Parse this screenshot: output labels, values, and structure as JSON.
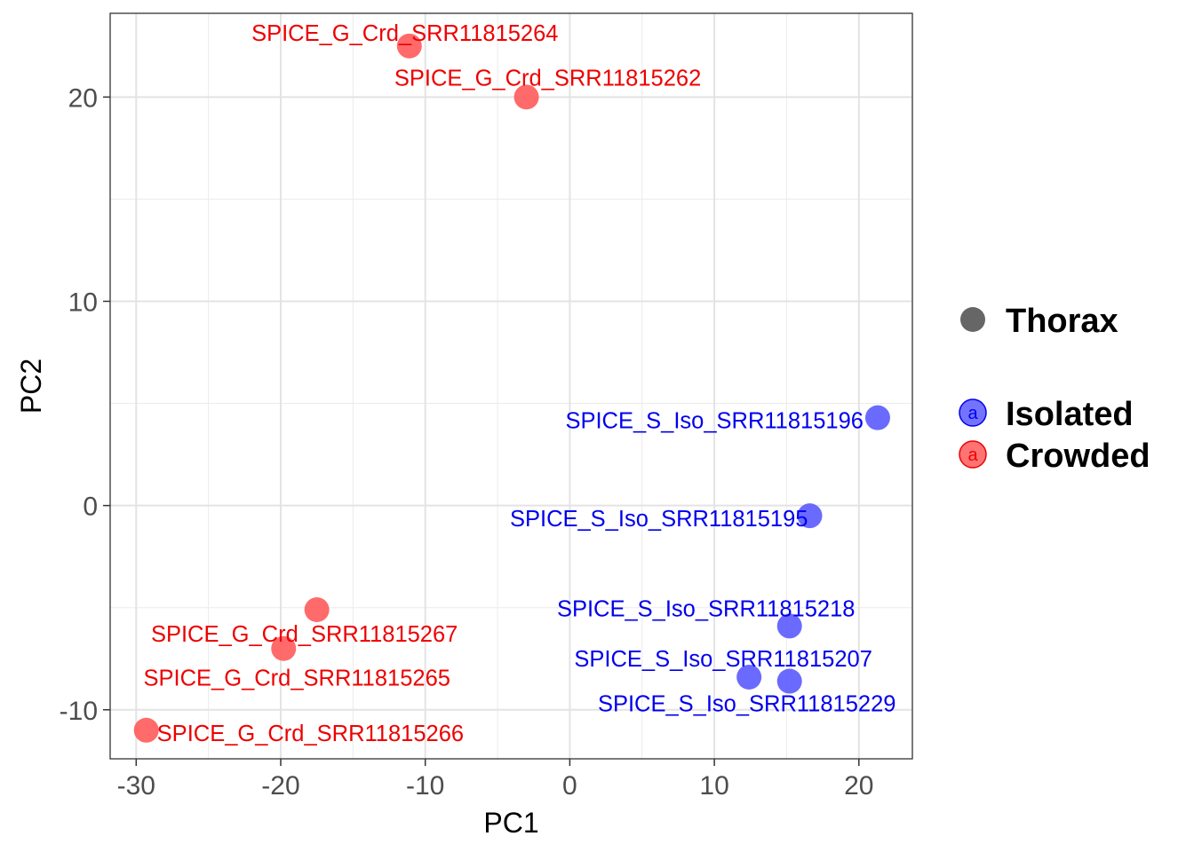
{
  "chart_data": {
    "type": "scatter",
    "title": "",
    "xlabel": "PC1",
    "ylabel": "PC2",
    "xlim": [
      -31.8,
      23.7
    ],
    "ylim": [
      -12.4,
      24.1
    ],
    "x_ticks": [
      -30,
      -20,
      -10,
      0,
      10,
      20
    ],
    "y_ticks": [
      -10,
      0,
      10,
      20
    ],
    "x_tick_labels": [
      "-30",
      "-20",
      "-10",
      "0",
      "10",
      "20"
    ],
    "y_tick_labels": [
      "-10",
      "0",
      "10",
      "20"
    ],
    "grid": true,
    "series": [
      {
        "name": "Isolated",
        "color": "#5a5aff",
        "label_color": "#0000ee",
        "points": [
          {
            "x": 21.3,
            "y": 4.3,
            "label": "SPICE_S_Iso_SRR11815196"
          },
          {
            "x": 16.6,
            "y": -0.5,
            "label": "SPICE_S_Iso_SRR11815195"
          },
          {
            "x": 15.2,
            "y": -5.9,
            "label": "SPICE_S_Iso_SRR11815218"
          },
          {
            "x": 12.4,
            "y": -8.4,
            "label": "SPICE_S_Iso_SRR11815207"
          },
          {
            "x": 15.2,
            "y": -8.6,
            "label": "SPICE_S_Iso_SRR11815229"
          }
        ]
      },
      {
        "name": "Crowded",
        "color": "#ff5a5a",
        "label_color": "#ee0000",
        "points": [
          {
            "x": -11.1,
            "y": 22.5,
            "label": "SPICE_G_Crd_SRR11815264"
          },
          {
            "x": -3.0,
            "y": 20.0,
            "label": "SPICE_G_Crd_SRR11815262"
          },
          {
            "x": -17.5,
            "y": -5.1,
            "label": "SPICE_G_Crd_SRR11815267"
          },
          {
            "x": -19.8,
            "y": -7.0,
            "label": "SPICE_G_Crd_SRR11815265"
          },
          {
            "x": -29.3,
            "y": -11.0,
            "label": "SPICE_G_Crd_SRR11815266"
          }
        ]
      }
    ],
    "legend": {
      "placement": "right",
      "shape_title": "Thorax",
      "shape_color": "#666666",
      "color_entries": [
        "Isolated",
        "Crowded"
      ],
      "key_glyph": "a"
    }
  }
}
